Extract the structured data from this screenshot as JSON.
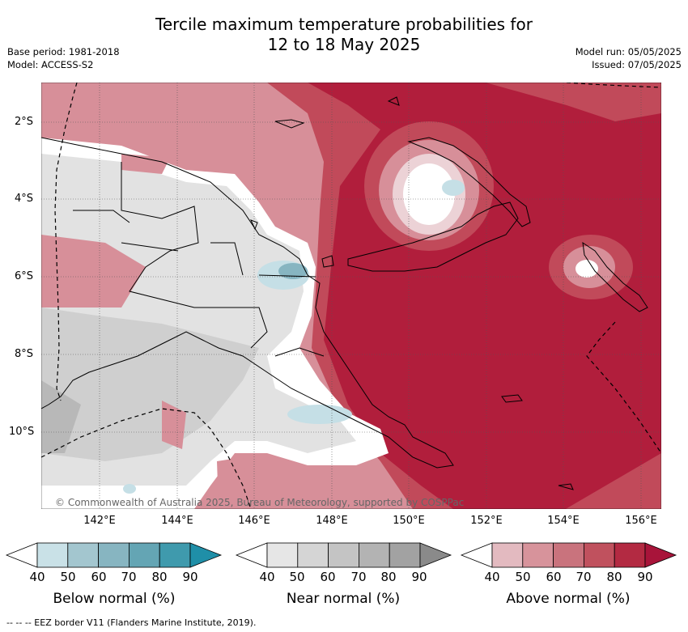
{
  "title_line1": "Tercile maximum temperature probabilities for",
  "title_line2": "12 to 18 May 2025",
  "meta": {
    "base_period": "Base period: 1981-2018",
    "model": "Model: ACCESS-S2",
    "model_run": "Model run: 05/05/2025",
    "issued": "Issued: 07/05/2025"
  },
  "map": {
    "lat_labels": [
      "2°S",
      "4°S",
      "6°S",
      "8°S",
      "10°S"
    ],
    "lon_labels": [
      "142°E",
      "144°E",
      "146°E",
      "148°E",
      "150°E",
      "152°E",
      "154°E",
      "156°E"
    ],
    "copyright": "© Commonwealth of Australia 2025, Bureau of Meteorology, supported by COSPPac",
    "colors": {
      "above_dark": "#b11e3c",
      "above_mid": "#c14a5a",
      "above_light": "#d78f99",
      "near_light": "#e2e2e2",
      "near_mid": "#cfcfcf",
      "below_light": "#c5dfe6",
      "land_outline": "#000000"
    }
  },
  "legends": {
    "below": {
      "label": "Below normal (%)",
      "ticks": [
        "40",
        "50",
        "60",
        "70",
        "80",
        "90"
      ],
      "colors": [
        "#ffffff",
        "#c9e1e7",
        "#a3c6cf",
        "#87b5c1",
        "#64a5b4",
        "#3f9aad",
        "#1f8fa8"
      ]
    },
    "near": {
      "label": "Near normal (%)",
      "ticks": [
        "40",
        "50",
        "60",
        "70",
        "80",
        "90"
      ],
      "colors": [
        "#ffffff",
        "#e6e6e6",
        "#d5d5d5",
        "#c4c4c4",
        "#b3b3b3",
        "#a2a2a2",
        "#8a8a8a"
      ]
    },
    "above": {
      "label": "Above normal (%)",
      "ticks": [
        "40",
        "50",
        "60",
        "70",
        "80",
        "90"
      ],
      "colors": [
        "#ffffff",
        "#e3bac0",
        "#d7939b",
        "#c9737d",
        "#c0515e",
        "#b32a42",
        "#a8143a"
      ]
    }
  },
  "eez_note": "--  --  -- EEZ border V11 (Flanders Marine Institute, 2019)."
}
